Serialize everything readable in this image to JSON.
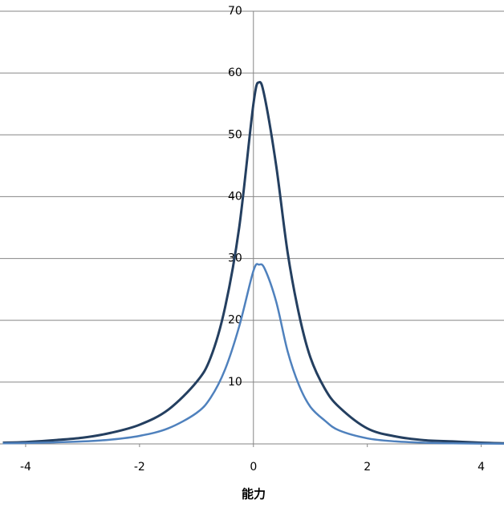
{
  "chart_data": {
    "type": "line",
    "x_label": "能力",
    "x": [
      -4.4,
      -4,
      -3.5,
      -3,
      -2.5,
      -2,
      -1.5,
      -1,
      -0.75,
      -0.5,
      -0.25,
      0,
      0.1,
      0.2,
      0.4,
      0.6,
      0.8,
      1,
      1.25,
      1.5,
      2,
      2.5,
      3,
      3.5,
      4,
      4.4
    ],
    "series": [
      {
        "color": "#243f60",
        "width": 3,
        "values": [
          0.2,
          0.3,
          0.6,
          1.0,
          1.8,
          3.1,
          5.5,
          10,
          14,
          22,
          35,
          55,
          58.5,
          56,
          45,
          31,
          21,
          14,
          9,
          6,
          2.5,
          1.2,
          0.6,
          0.4,
          0.2,
          0.1
        ]
      },
      {
        "color": "#4f81bd",
        "width": 2.5,
        "values": [
          0.1,
          0.15,
          0.25,
          0.4,
          0.7,
          1.3,
          2.5,
          5,
          7.5,
          12,
          19,
          28,
          29,
          28.3,
          23,
          15,
          9.5,
          6,
          3.8,
          2.2,
          0.9,
          0.4,
          0.2,
          0.1,
          0.05,
          0.03
        ]
      }
    ],
    "xlim": [
      -4.45,
      4.4
    ],
    "xticks": [
      -4,
      -2,
      0,
      2,
      4
    ],
    "ylim": [
      0,
      70
    ],
    "yticks": [
      0,
      10,
      20,
      30,
      40,
      50,
      60,
      70
    ],
    "grid": true
  }
}
